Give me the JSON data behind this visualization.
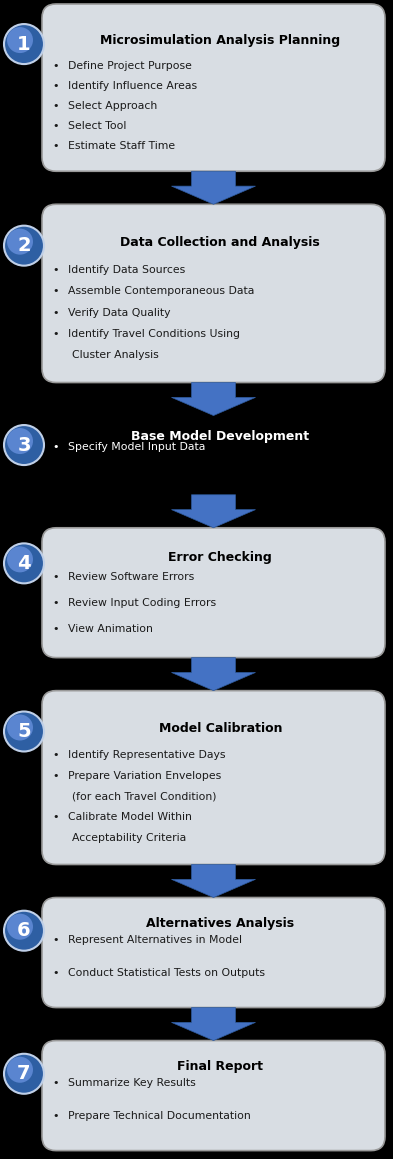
{
  "background_color": "#000000",
  "box_bg_color": "#d8dde3",
  "box_border_color": "#999999",
  "circle_color_dark": "#2e5a9c",
  "circle_color_mid": "#4472c4",
  "circle_color_light": "#6a96d4",
  "arrow_color_dark": "#2e5a9c",
  "arrow_color_mid": "#4472c4",
  "arrow_color_light": "#6a9fd8",
  "text_color_dark": "#000000",
  "text_color_white": "#ffffff",
  "steps": [
    {
      "number": "1",
      "title": "Microsimulation Analysis Planning",
      "bullets": [
        "Define Project Purpose",
        "Identify Influence Areas",
        "Select Approach",
        "Select Tool",
        "Estimate Staff Time"
      ],
      "highlighted": false,
      "title_color": "#000000",
      "bullet_color": "#1a1a1a"
    },
    {
      "number": "2",
      "title": "Data Collection and Analysis",
      "bullets": [
        "Identify Data Sources",
        "Assemble Contemporaneous Data",
        "Verify Data Quality",
        "Identify Travel Conditions Using\n   Cluster Analysis"
      ],
      "highlighted": false,
      "title_color": "#000000",
      "bullet_color": "#1a1a1a"
    },
    {
      "number": "3",
      "title": "Base Model Development",
      "bullets": [
        "Specify Model Input Data"
      ],
      "highlighted": true,
      "title_color": "#ffffff",
      "bullet_color": "#ffffff"
    },
    {
      "number": "4",
      "title": "Error Checking",
      "bullets": [
        "Review Software Errors",
        "Review Input Coding Errors",
        "View Animation"
      ],
      "highlighted": false,
      "title_color": "#000000",
      "bullet_color": "#1a1a1a"
    },
    {
      "number": "5",
      "title": "Model Calibration",
      "bullets": [
        "Identify Representative Days",
        "Prepare Variation Envelopes\n   (for each Travel Condition)",
        "Calibrate Model Within\n   Acceptability Criteria"
      ],
      "highlighted": false,
      "title_color": "#000000",
      "bullet_color": "#1a1a1a"
    },
    {
      "number": "6",
      "title": "Alternatives Analysis",
      "bullets": [
        "Represent Alternatives in Model",
        "Conduct Statistical Tests on Outputs"
      ],
      "highlighted": false,
      "title_color": "#000000",
      "bullet_color": "#1a1a1a"
    },
    {
      "number": "7",
      "title": "Final Report",
      "bullets": [
        "Summarize Key Results",
        "Prepare Technical Documentation"
      ],
      "highlighted": false,
      "title_color": "#000000",
      "bullet_color": "#1a1a1a"
    }
  ]
}
